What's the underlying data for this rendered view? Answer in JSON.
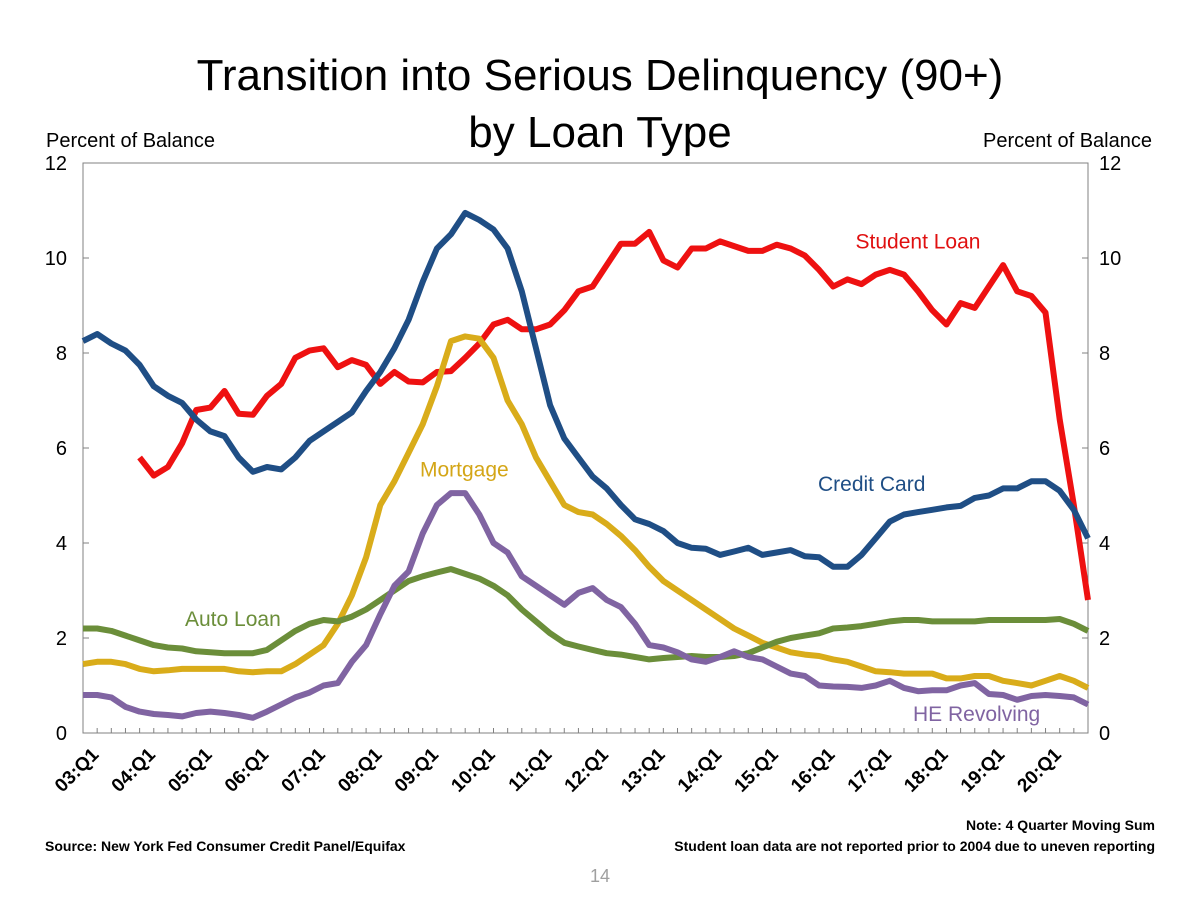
{
  "slide": {
    "title_line1": "Transition into Serious Delinquency (90+)",
    "title_line2": "by Loan Type",
    "left_axis_unit": "Percent of Balance",
    "right_axis_unit": "Percent of Balance",
    "source": "Source: New York Fed Consumer Credit Panel/Equifax",
    "note_line1": "Note: 4 Quarter Moving Sum",
    "note_line2": "Student loan data are not reported prior to 2004 due to uneven reporting",
    "page_number": "14"
  },
  "chart_data": {
    "type": "line",
    "title": "Transition into Serious Delinquency (90+) by Loan Type",
    "ylabel": "Percent of Balance",
    "ylabel_right": "Percent of Balance",
    "ylim": [
      0,
      12
    ],
    "yticks": [
      0,
      2,
      4,
      6,
      8,
      10,
      12
    ],
    "grid": false,
    "x_tick_labels": [
      "03:Q1",
      "04:Q1",
      "05:Q1",
      "06:Q1",
      "07:Q1",
      "08:Q1",
      "09:Q1",
      "10:Q1",
      "11:Q1",
      "12:Q1",
      "13:Q1",
      "14:Q1",
      "15:Q1",
      "16:Q1",
      "17:Q1",
      "18:Q1",
      "19:Q1",
      "20:Q1"
    ],
    "x": [
      "03:Q1",
      "03:Q2",
      "03:Q3",
      "03:Q4",
      "04:Q1",
      "04:Q2",
      "04:Q3",
      "04:Q4",
      "05:Q1",
      "05:Q2",
      "05:Q3",
      "05:Q4",
      "06:Q1",
      "06:Q2",
      "06:Q3",
      "06:Q4",
      "07:Q1",
      "07:Q2",
      "07:Q3",
      "07:Q4",
      "08:Q1",
      "08:Q2",
      "08:Q3",
      "08:Q4",
      "09:Q1",
      "09:Q2",
      "09:Q3",
      "09:Q4",
      "10:Q1",
      "10:Q2",
      "10:Q3",
      "10:Q4",
      "11:Q1",
      "11:Q2",
      "11:Q3",
      "11:Q4",
      "12:Q1",
      "12:Q2",
      "12:Q3",
      "12:Q4",
      "13:Q1",
      "13:Q2",
      "13:Q3",
      "13:Q4",
      "14:Q1",
      "14:Q2",
      "14:Q3",
      "14:Q4",
      "15:Q1",
      "15:Q2",
      "15:Q3",
      "15:Q4",
      "16:Q1",
      "16:Q2",
      "16:Q3",
      "16:Q4",
      "17:Q1",
      "17:Q2",
      "17:Q3",
      "17:Q4",
      "18:Q1",
      "18:Q2",
      "18:Q3",
      "18:Q4",
      "19:Q1",
      "19:Q2",
      "19:Q3",
      "19:Q4",
      "20:Q1",
      "20:Q2",
      "20:Q3",
      "20:Q4"
    ],
    "series": [
      {
        "name": "Student Loan",
        "color": "#ee1111",
        "label_color": "#e01010",
        "values": [
          null,
          null,
          null,
          null,
          null,
          null,
          null,
          null,
          null,
          null,
          null,
          null,
          null,
          null,
          null,
          null,
          null,
          null,
          null,
          null,
          null,
          null,
          null,
          null,
          null,
          null,
          null,
          null,
          null,
          null,
          null,
          null,
          null,
          null,
          null,
          null,
          null,
          null,
          null,
          null,
          null,
          null,
          null,
          null,
          null,
          null,
          null,
          null,
          null,
          null,
          null,
          null,
          null,
          null,
          null,
          null,
          null,
          null,
          null,
          null,
          null,
          null,
          null,
          null,
          null,
          null,
          null,
          null,
          null,
          null,
          null,
          null
        ]
      },
      {
        "name": "Credit Card",
        "color": "#1f4e85",
        "label_color": "#1f4e85",
        "values": [
          8.25,
          8.4,
          8.2,
          8.05,
          7.75,
          7.3,
          7.1,
          6.95,
          6.6,
          6.35,
          6.25,
          5.8,
          5.5,
          5.6,
          5.55,
          5.8,
          6.15,
          6.35,
          6.55,
          6.75,
          7.2,
          7.6,
          8.1,
          8.7,
          9.5,
          10.2,
          10.5,
          10.95,
          10.8,
          10.6,
          10.2,
          9.3,
          8.1,
          6.9,
          6.2,
          5.8,
          5.4,
          5.15,
          4.8,
          4.5,
          4.4,
          4.25,
          4.0,
          3.9,
          3.88,
          3.75,
          3.82,
          3.9,
          3.75,
          3.8,
          3.85,
          3.72,
          3.7,
          3.5,
          3.5,
          3.75,
          4.1,
          4.45,
          4.6,
          4.65,
          4.7,
          4.75,
          4.78,
          4.95,
          5.0,
          5.15,
          5.15,
          5.3,
          5.3,
          5.1,
          4.7,
          4.1
        ]
      },
      {
        "name": "Mortgage",
        "color": "#d9ac1a",
        "label_color": "#d4a617",
        "values": [
          1.45,
          1.5,
          1.5,
          1.45,
          1.35,
          1.3,
          1.32,
          1.35,
          1.35,
          1.35,
          1.35,
          1.3,
          1.28,
          1.3,
          1.3,
          1.45,
          1.65,
          1.85,
          2.3,
          2.9,
          3.7,
          4.8,
          5.3,
          5.9,
          6.5,
          7.3,
          8.25,
          8.35,
          8.3,
          7.9,
          7.0,
          6.5,
          5.8,
          5.3,
          4.8,
          4.65,
          4.6,
          4.4,
          4.15,
          3.85,
          3.5,
          3.2,
          3.0,
          2.8,
          2.6,
          2.4,
          2.2,
          2.05,
          1.9,
          1.8,
          1.7,
          1.65,
          1.62,
          1.55,
          1.5,
          1.4,
          1.3,
          1.28,
          1.25,
          1.25,
          1.25,
          1.15,
          1.15,
          1.2,
          1.2,
          1.1,
          1.05,
          1.0,
          1.1,
          1.2,
          1.1,
          0.95
        ]
      },
      {
        "name": "Auto Loan",
        "color": "#6b8e3a",
        "label_color": "#6b8e3a",
        "values": [
          2.2,
          2.2,
          2.15,
          2.05,
          1.95,
          1.85,
          1.8,
          1.78,
          1.72,
          1.7,
          1.68,
          1.68,
          1.68,
          1.75,
          1.95,
          2.15,
          2.3,
          2.38,
          2.35,
          2.45,
          2.6,
          2.8,
          3.0,
          3.2,
          3.3,
          3.38,
          3.45,
          3.35,
          3.25,
          3.1,
          2.9,
          2.6,
          2.35,
          2.1,
          1.9,
          1.82,
          1.75,
          1.68,
          1.65,
          1.6,
          1.55,
          1.58,
          1.6,
          1.62,
          1.6,
          1.6,
          1.62,
          1.68,
          1.8,
          1.92,
          2.0,
          2.05,
          2.1,
          2.2,
          2.22,
          2.25,
          2.3,
          2.35,
          2.38,
          2.38,
          2.35,
          2.35,
          2.35,
          2.35,
          2.38,
          2.38,
          2.38,
          2.38,
          2.38,
          2.4,
          2.3,
          2.15
        ]
      },
      {
        "name": "HE Revolving",
        "color": "#8064a2",
        "label_color": "#8064a2",
        "values": [
          0.8,
          0.8,
          0.75,
          0.55,
          0.45,
          0.4,
          0.38,
          0.35,
          0.42,
          0.45,
          0.42,
          0.38,
          0.32,
          0.45,
          0.6,
          0.75,
          0.85,
          1.0,
          1.05,
          1.5,
          1.85,
          2.5,
          3.1,
          3.4,
          4.2,
          4.8,
          5.05,
          5.05,
          4.6,
          4.0,
          3.8,
          3.3,
          3.1,
          2.9,
          2.7,
          2.95,
          3.05,
          2.8,
          2.65,
          2.3,
          1.85,
          1.8,
          1.7,
          1.55,
          1.5,
          1.6,
          1.72,
          1.6,
          1.55,
          1.4,
          1.25,
          1.2,
          1.0,
          0.98,
          0.97,
          0.95,
          1.0,
          1.1,
          0.95,
          0.88,
          0.9,
          0.9,
          1.0,
          1.05,
          0.82,
          0.8,
          0.7,
          0.78,
          0.8,
          0.78,
          0.75,
          0.6
        ]
      }
    ]
  }
}
